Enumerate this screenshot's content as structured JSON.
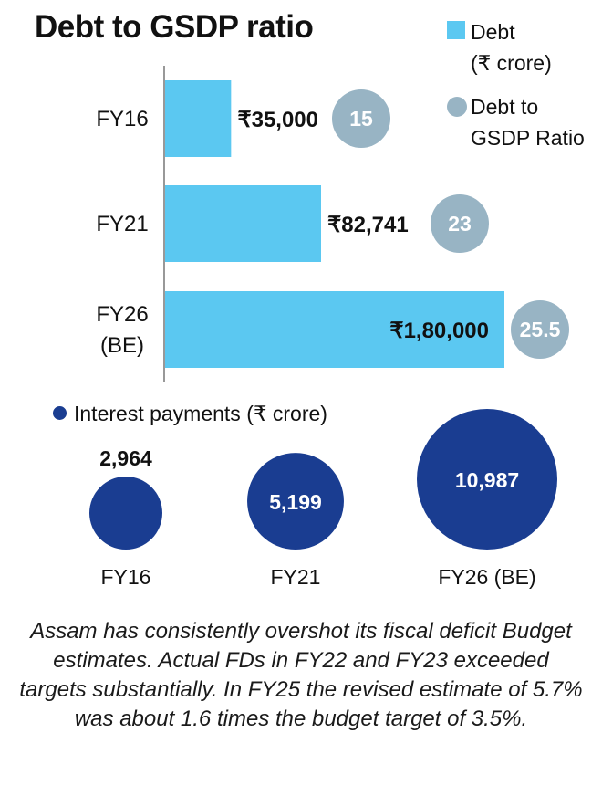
{
  "title": "Debt to GSDP ratio",
  "legend": {
    "debt_line1": "Debt",
    "debt_line2": "(₹ crore)",
    "ratio_line1": "Debt to",
    "ratio_line2": "GSDP Ratio"
  },
  "interest_legend": "Interest payments (₹ crore)",
  "note": "Assam has consistently overshot its fiscal deficit Budget estimates. Actual FDs in FY22 and FY23 exceeded targets substantially. In FY25 the revised estimate of 5.7% was about 1.6 times the budget target of 3.5%.",
  "colors": {
    "debt_bar": "#5bc8f1",
    "ratio_bubble": "#98b4c4",
    "interest_bubble": "#1a3d91"
  },
  "chart_data": [
    {
      "type": "bar",
      "orientation": "horizontal",
      "title": "Debt to GSDP ratio",
      "categories": [
        [
          "FY16"
        ],
        [
          "FY21"
        ],
        [
          "FY26",
          "(BE)"
        ]
      ],
      "series": [
        {
          "name": "Debt (₹ crore)",
          "values": [
            35000,
            82741,
            180000
          ],
          "labels": [
            "₹35,000",
            "₹82,741",
            "₹1,80,000"
          ]
        },
        {
          "name": "Debt to GSDP Ratio",
          "values": [
            15,
            23,
            25.5
          ],
          "labels": [
            "15",
            "23",
            "25.5"
          ]
        }
      ],
      "xlim": [
        0,
        180000
      ],
      "grid": false,
      "legend_position": "top-right"
    },
    {
      "type": "bubble",
      "title": "",
      "series_name": "Interest payments (₹ crore)",
      "categories": [
        "FY16",
        "FY21",
        "FY26 (BE)"
      ],
      "values": [
        2964,
        5199,
        10987
      ],
      "labels": [
        "2,964",
        "5,199",
        "10,987"
      ],
      "legend_position": "top-left"
    }
  ]
}
